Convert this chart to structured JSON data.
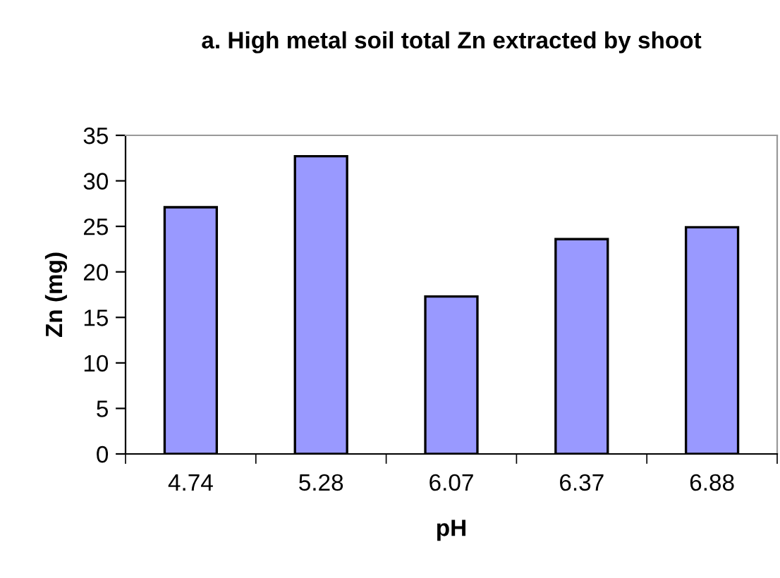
{
  "chart_data": {
    "type": "bar",
    "title": "a. High metal soil total Zn extracted by shoot",
    "xlabel": "pH",
    "ylabel": "Zn (mg)",
    "categories": [
      "4.74",
      "5.28",
      "6.07",
      "6.37",
      "6.88"
    ],
    "values": [
      27.1,
      32.7,
      17.3,
      23.6,
      24.9
    ],
    "color": "#9999ff",
    "ylim": [
      0,
      35
    ],
    "yticks": [
      0,
      5,
      10,
      15,
      20,
      25,
      30,
      35
    ],
    "grid": false,
    "legend": false
  }
}
